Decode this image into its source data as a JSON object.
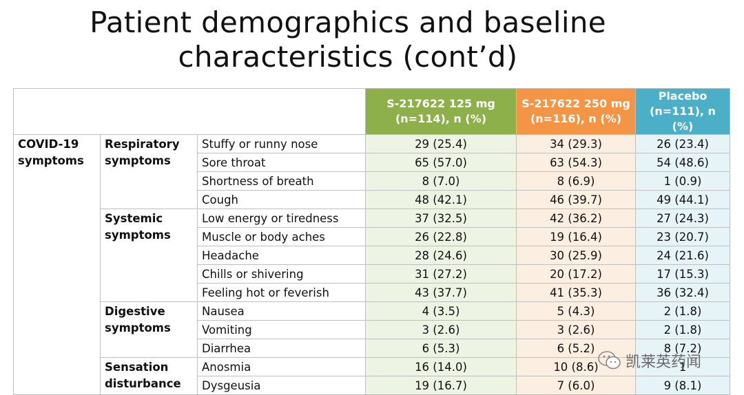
{
  "title": {
    "line1": "Patient demographics and baseline",
    "line2": "characteristics (cont’d)"
  },
  "table": {
    "headers": {
      "col1": "S-217622 125 mg (n=114), n (%)",
      "col2": "S-217622 250 mg (n=116), n (%)",
      "col3": "Placebo (n=111), n (%)"
    },
    "category": "COVID-19 symptoms",
    "groups": [
      {
        "name": "Respiratory symptoms",
        "rows": [
          {
            "symptom": "Stuffy or runny nose",
            "v1": "29 (25.4)",
            "v2": "34 (29.3)",
            "v3": "26 (23.4)"
          },
          {
            "symptom": "Sore throat",
            "v1": "65 (57.0)",
            "v2": "63 (54.3)",
            "v3": "54 (48.6)"
          },
          {
            "symptom": "Shortness of breath",
            "v1": "8 (7.0)",
            "v2": "8 (6.9)",
            "v3": "1 (0.9)"
          },
          {
            "symptom": "Cough",
            "v1": "48 (42.1)",
            "v2": "46 (39.7)",
            "v3": "49 (44.1)"
          }
        ]
      },
      {
        "name": "Systemic symptoms",
        "rows": [
          {
            "symptom": "Low energy or tiredness",
            "v1": "37 (32.5)",
            "v2": "42 (36.2)",
            "v3": "27 (24.3)"
          },
          {
            "symptom": "Muscle or body aches",
            "v1": "26 (22.8)",
            "v2": "19 (16.4)",
            "v3": "23 (20.7)"
          },
          {
            "symptom": "Headache",
            "v1": "28 (24.6)",
            "v2": "30 (25.9)",
            "v3": "24 (21.6)"
          },
          {
            "symptom": "Chills or shivering",
            "v1": "31 (27.2)",
            "v2": "20 (17.2)",
            "v3": "17 (15.3)"
          },
          {
            "symptom": "Feeling hot or feverish",
            "v1": "43 (37.7)",
            "v2": "41 (35.3)",
            "v3": "36 (32.4)"
          }
        ]
      },
      {
        "name": "Digestive symptoms",
        "rows": [
          {
            "symptom": "Nausea",
            "v1": "4 (3.5)",
            "v2": "5 (4.3)",
            "v3": "2 (1.8)"
          },
          {
            "symptom": "Vomiting",
            "v1": "3 (2.6)",
            "v2": "3 (2.6)",
            "v3": "2 (1.8)"
          },
          {
            "symptom": "Diarrhea",
            "v1": "6 (5.3)",
            "v2": "6 (5.2)",
            "v3": "8 (7.2)"
          }
        ]
      },
      {
        "name": "Sensation disturbance",
        "rows": [
          {
            "symptom": "Anosmia",
            "v1": "16 (14.0)",
            "v2": "10 (8.6)",
            "v3": "1"
          },
          {
            "symptom": "Dysgeusia",
            "v1": "19 (16.7)",
            "v2": "7 (6.0)",
            "v3": "9 (8.1)"
          }
        ]
      }
    ]
  },
  "watermark": {
    "text": "凯莱英药闻",
    "icon": "wechat-icon"
  },
  "colors": {
    "col1_header": "#8db04a",
    "col2_header": "#f49445",
    "col3_header": "#4bafc8",
    "col1_cell": "#eef4e3",
    "col2_cell": "#fdeee2",
    "col3_cell": "#e6f3f7"
  }
}
